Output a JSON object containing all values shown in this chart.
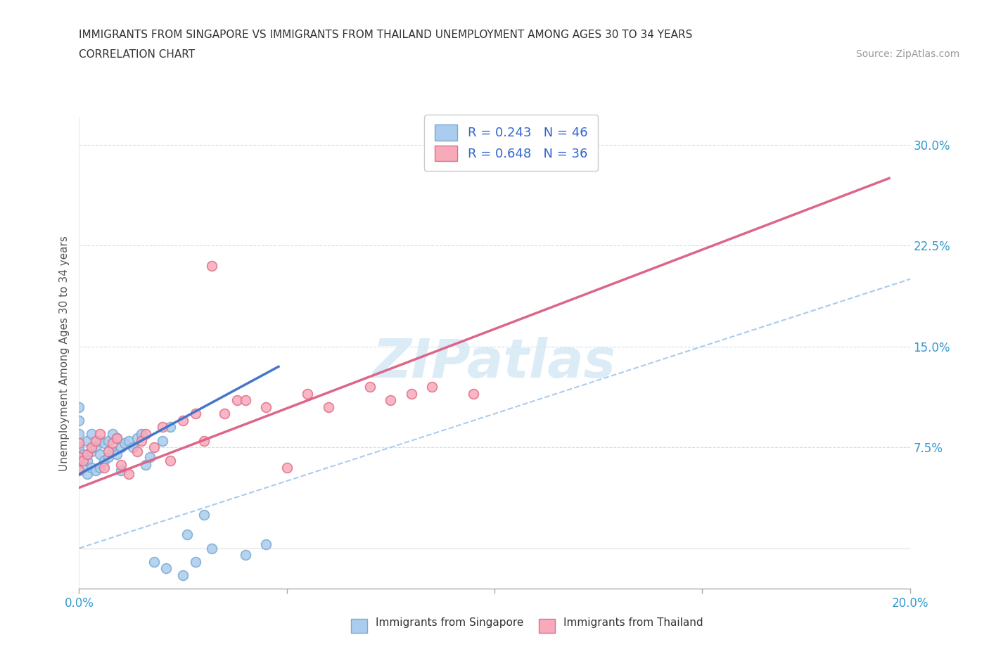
{
  "title_line1": "IMMIGRANTS FROM SINGAPORE VS IMMIGRANTS FROM THAILAND UNEMPLOYMENT AMONG AGES 30 TO 34 YEARS",
  "title_line2": "CORRELATION CHART",
  "source_text": "Source: ZipAtlas.com",
  "ylabel": "Unemployment Among Ages 30 to 34 years",
  "xlim": [
    0.0,
    0.2
  ],
  "ylim": [
    -0.03,
    0.32
  ],
  "yticks": [
    0.075,
    0.15,
    0.225,
    0.3
  ],
  "ytick_labels": [
    "7.5%",
    "15.0%",
    "22.5%",
    "30.0%"
  ],
  "xticks": [
    0.0,
    0.05,
    0.1,
    0.15,
    0.2
  ],
  "xtick_labels": [
    "0.0%",
    "",
    "",
    "",
    "20.0%"
  ],
  "singapore_color": "#aaccee",
  "singapore_edge": "#7aaad0",
  "thailand_color": "#f8aabb",
  "thailand_edge": "#e0708a",
  "singapore_line_color": "#4477cc",
  "thailand_line_color": "#dd6688",
  "diagonal_color": "#aaccee",
  "R_singapore": 0.243,
  "N_singapore": 46,
  "R_thailand": 0.648,
  "N_thailand": 36,
  "watermark": "ZIPatlas",
  "sg_line_x0": 0.0,
  "sg_line_y0": 0.055,
  "sg_line_x1": 0.048,
  "sg_line_y1": 0.135,
  "th_line_x0": 0.0,
  "th_line_y0": 0.045,
  "th_line_x1": 0.195,
  "th_line_y1": 0.275,
  "singapore_x": [
    0.0,
    0.0,
    0.0,
    0.0,
    0.0,
    0.001,
    0.001,
    0.002,
    0.002,
    0.002,
    0.003,
    0.003,
    0.003,
    0.004,
    0.004,
    0.005,
    0.005,
    0.005,
    0.006,
    0.006,
    0.007,
    0.007,
    0.008,
    0.008,
    0.009,
    0.009,
    0.01,
    0.01,
    0.011,
    0.012,
    0.013,
    0.014,
    0.015,
    0.016,
    0.017,
    0.018,
    0.02,
    0.021,
    0.022,
    0.025,
    0.026,
    0.028,
    0.03,
    0.032,
    0.04,
    0.045
  ],
  "singapore_y": [
    0.065,
    0.075,
    0.085,
    0.095,
    0.105,
    0.06,
    0.07,
    0.055,
    0.065,
    0.08,
    0.06,
    0.072,
    0.085,
    0.058,
    0.075,
    0.06,
    0.07,
    0.08,
    0.065,
    0.078,
    0.068,
    0.08,
    0.072,
    0.085,
    0.07,
    0.082,
    0.058,
    0.075,
    0.078,
    0.08,
    0.075,
    0.082,
    0.085,
    0.062,
    0.068,
    -0.01,
    0.08,
    -0.015,
    0.09,
    -0.02,
    0.01,
    -0.01,
    0.025,
    0.0,
    -0.005,
    0.003
  ],
  "thailand_x": [
    0.0,
    0.0,
    0.0,
    0.001,
    0.002,
    0.003,
    0.004,
    0.005,
    0.006,
    0.007,
    0.008,
    0.009,
    0.01,
    0.012,
    0.014,
    0.015,
    0.016,
    0.018,
    0.02,
    0.022,
    0.025,
    0.028,
    0.03,
    0.032,
    0.035,
    0.038,
    0.04,
    0.045,
    0.05,
    0.055,
    0.06,
    0.07,
    0.075,
    0.08,
    0.085,
    0.095
  ],
  "thailand_y": [
    0.058,
    0.068,
    0.078,
    0.065,
    0.07,
    0.075,
    0.08,
    0.085,
    0.06,
    0.072,
    0.078,
    0.082,
    0.062,
    0.055,
    0.072,
    0.08,
    0.085,
    0.075,
    0.09,
    0.065,
    0.095,
    0.1,
    0.08,
    0.21,
    0.1,
    0.11,
    0.11,
    0.105,
    0.06,
    0.115,
    0.105,
    0.12,
    0.11,
    0.115,
    0.12,
    0.115
  ]
}
